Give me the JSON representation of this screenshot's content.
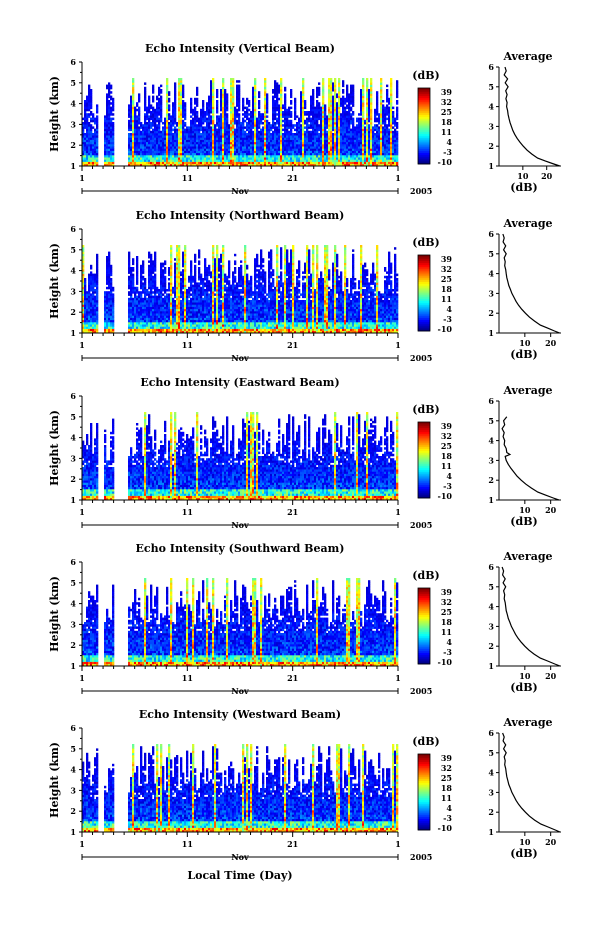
{
  "chart_data": [
    {
      "type": "heatmap",
      "title": "Echo Intensity (Vertical Beam)",
      "ylabel": "Height (km)",
      "x_tick_labels": [
        "1",
        "11",
        "21",
        "1"
      ],
      "month_label": "Nov",
      "year_label": "2005",
      "ylim": [
        1,
        6
      ],
      "y_ticks": [
        "1",
        "2",
        "3",
        "4",
        "5",
        "6"
      ],
      "colorbar_unit": "(dB)",
      "colorbar_ticks": [
        "39",
        "32",
        "25",
        "18",
        "11",
        "4",
        "-3",
        "-10"
      ],
      "clim": [
        -10,
        39
      ],
      "profile": {
        "title": "Average",
        "xlabel": "(dB)",
        "x_ticks": [
          "10",
          "20"
        ],
        "xlim": [
          0,
          26
        ],
        "ylim": [
          1,
          6
        ],
        "points": [
          [
            2.5,
            6.0
          ],
          [
            3.0,
            5.8
          ],
          [
            2.2,
            5.6
          ],
          [
            3.6,
            5.4
          ],
          [
            2.6,
            5.2
          ],
          [
            3.8,
            5.0
          ],
          [
            2.8,
            4.8
          ],
          [
            3.4,
            4.6
          ],
          [
            2.9,
            4.4
          ],
          [
            3.4,
            4.2
          ],
          [
            3.2,
            4.0
          ],
          [
            3.6,
            3.8
          ],
          [
            3.8,
            3.6
          ],
          [
            4.2,
            3.4
          ],
          [
            4.6,
            3.2
          ],
          [
            5.2,
            3.0
          ],
          [
            5.8,
            2.8
          ],
          [
            6.6,
            2.6
          ],
          [
            7.6,
            2.4
          ],
          [
            8.8,
            2.2
          ],
          [
            10.2,
            2.0
          ],
          [
            11.8,
            1.8
          ],
          [
            13.8,
            1.6
          ],
          [
            16.2,
            1.4
          ],
          [
            19.5,
            1.25
          ],
          [
            23.0,
            1.1
          ],
          [
            25.5,
            1.0
          ]
        ]
      }
    },
    {
      "type": "heatmap",
      "title": "Echo Intensity (Northward Beam)",
      "ylabel": "Height (km)",
      "x_tick_labels": [
        "1",
        "11",
        "21",
        "1"
      ],
      "month_label": "Nov",
      "year_label": "2005",
      "ylim": [
        1,
        6
      ],
      "y_ticks": [
        "1",
        "2",
        "3",
        "4",
        "5",
        "6"
      ],
      "colorbar_unit": "(dB)",
      "colorbar_ticks": [
        "39",
        "32",
        "25",
        "18",
        "11",
        "4",
        "-3",
        "-10"
      ],
      "clim": [
        -10,
        39
      ],
      "profile": {
        "title": "Average",
        "xlabel": "(dB)",
        "x_ticks": [
          "10",
          "20"
        ],
        "xlim": [
          0,
          24
        ],
        "ylim": [
          1,
          6
        ],
        "points": [
          [
            1.5,
            6.0
          ],
          [
            2.0,
            5.8
          ],
          [
            1.6,
            5.6
          ],
          [
            2.6,
            5.4
          ],
          [
            1.8,
            5.2
          ],
          [
            2.8,
            5.0
          ],
          [
            2.0,
            4.8
          ],
          [
            2.4,
            4.6
          ],
          [
            2.2,
            4.4
          ],
          [
            2.6,
            4.2
          ],
          [
            2.8,
            4.0
          ],
          [
            3.0,
            3.8
          ],
          [
            3.4,
            3.6
          ],
          [
            3.8,
            3.4
          ],
          [
            4.4,
            3.2
          ],
          [
            5.0,
            3.0
          ],
          [
            5.8,
            2.8
          ],
          [
            6.6,
            2.6
          ],
          [
            7.6,
            2.4
          ],
          [
            8.8,
            2.2
          ],
          [
            10.2,
            2.0
          ],
          [
            11.8,
            1.8
          ],
          [
            13.8,
            1.6
          ],
          [
            16.0,
            1.4
          ],
          [
            18.8,
            1.25
          ],
          [
            21.5,
            1.1
          ],
          [
            23.5,
            1.0
          ]
        ]
      }
    },
    {
      "type": "heatmap",
      "title": "Echo Intensity (Eastward Beam)",
      "ylabel": "Height (km)",
      "x_tick_labels": [
        "1",
        "11",
        "21",
        "1"
      ],
      "month_label": "Nov",
      "year_label": "2005",
      "ylim": [
        1,
        6
      ],
      "y_ticks": [
        "1",
        "2",
        "3",
        "4",
        "5",
        "6"
      ],
      "colorbar_unit": "(dB)",
      "colorbar_ticks": [
        "39",
        "32",
        "25",
        "18",
        "11",
        "4",
        "-3",
        "-10"
      ],
      "clim": [
        -10,
        39
      ],
      "profile": {
        "title": "Average",
        "xlabel": "(dB)",
        "x_ticks": [
          "10",
          "20"
        ],
        "xlim": [
          0,
          24
        ],
        "ylim": [
          1,
          6
        ],
        "points": [
          [
            3.0,
            5.2
          ],
          [
            1.8,
            5.0
          ],
          [
            2.2,
            4.8
          ],
          [
            1.2,
            4.6
          ],
          [
            2.0,
            4.4
          ],
          [
            1.6,
            4.2
          ],
          [
            2.2,
            4.0
          ],
          [
            2.0,
            3.8
          ],
          [
            2.8,
            3.6
          ],
          [
            3.0,
            3.4
          ],
          [
            4.2,
            3.3
          ],
          [
            2.4,
            3.2
          ],
          [
            2.8,
            3.0
          ],
          [
            3.6,
            2.8
          ],
          [
            4.6,
            2.6
          ],
          [
            5.8,
            2.4
          ],
          [
            7.0,
            2.2
          ],
          [
            8.6,
            2.0
          ],
          [
            10.4,
            1.8
          ],
          [
            12.6,
            1.6
          ],
          [
            15.0,
            1.4
          ],
          [
            18.0,
            1.25
          ],
          [
            21.0,
            1.1
          ],
          [
            23.2,
            1.0
          ]
        ]
      }
    },
    {
      "type": "heatmap",
      "title": "Echo Intensity (Southward Beam)",
      "ylabel": "Height (km)",
      "x_tick_labels": [
        "1",
        "11",
        "21",
        "1"
      ],
      "month_label": "Nov",
      "year_label": "2005",
      "ylim": [
        1,
        6
      ],
      "y_ticks": [
        "1",
        "2",
        "3",
        "4",
        "5",
        "6"
      ],
      "colorbar_unit": "(dB)",
      "colorbar_ticks": [
        "39",
        "32",
        "25",
        "18",
        "11",
        "4",
        "-3",
        "-10"
      ],
      "clim": [
        -10,
        39
      ],
      "profile": {
        "title": "Average",
        "xlabel": "(dB)",
        "x_ticks": [
          "10",
          "20"
        ],
        "xlim": [
          0,
          24
        ],
        "ylim": [
          1,
          6
        ],
        "points": [
          [
            1.2,
            6.0
          ],
          [
            1.8,
            5.8
          ],
          [
            1.4,
            5.6
          ],
          [
            2.4,
            5.4
          ],
          [
            1.6,
            5.2
          ],
          [
            2.6,
            5.0
          ],
          [
            1.8,
            4.8
          ],
          [
            2.2,
            4.6
          ],
          [
            2.0,
            4.4
          ],
          [
            2.4,
            4.2
          ],
          [
            2.6,
            4.0
          ],
          [
            2.8,
            3.8
          ],
          [
            3.2,
            3.6
          ],
          [
            3.6,
            3.4
          ],
          [
            4.2,
            3.2
          ],
          [
            4.8,
            3.0
          ],
          [
            5.6,
            2.8
          ],
          [
            6.4,
            2.6
          ],
          [
            7.4,
            2.4
          ],
          [
            8.6,
            2.2
          ],
          [
            10.0,
            2.0
          ],
          [
            11.6,
            1.8
          ],
          [
            13.6,
            1.6
          ],
          [
            16.0,
            1.4
          ],
          [
            18.8,
            1.25
          ],
          [
            21.6,
            1.1
          ],
          [
            23.6,
            1.0
          ]
        ]
      }
    },
    {
      "type": "heatmap",
      "title": "Echo Intensity (Westward Beam)",
      "ylabel": "Height (km)",
      "xlabel": "Local Time (Day)",
      "x_tick_labels": [
        "1",
        "11",
        "21",
        "1"
      ],
      "month_label": "Nov",
      "year_label": "2005",
      "ylim": [
        1,
        6
      ],
      "y_ticks": [
        "1",
        "2",
        "3",
        "4",
        "5",
        "6"
      ],
      "colorbar_unit": "(dB)",
      "colorbar_ticks": [
        "39",
        "32",
        "25",
        "18",
        "11",
        "4",
        "-3",
        "-10"
      ],
      "clim": [
        -10,
        39
      ],
      "profile": {
        "title": "Average",
        "xlabel": "(dB)",
        "x_ticks": [
          "10",
          "20"
        ],
        "xlim": [
          0,
          24
        ],
        "ylim": [
          1,
          6
        ],
        "points": [
          [
            1.4,
            6.0
          ],
          [
            2.0,
            5.8
          ],
          [
            1.6,
            5.6
          ],
          [
            2.6,
            5.4
          ],
          [
            1.8,
            5.2
          ],
          [
            2.8,
            5.0
          ],
          [
            2.0,
            4.8
          ],
          [
            2.4,
            4.6
          ],
          [
            2.2,
            4.4
          ],
          [
            2.6,
            4.2
          ],
          [
            2.8,
            4.0
          ],
          [
            3.0,
            3.8
          ],
          [
            3.4,
            3.6
          ],
          [
            3.8,
            3.4
          ],
          [
            4.4,
            3.2
          ],
          [
            5.0,
            3.0
          ],
          [
            5.8,
            2.8
          ],
          [
            6.6,
            2.6
          ],
          [
            7.6,
            2.4
          ],
          [
            8.8,
            2.2
          ],
          [
            10.2,
            2.0
          ],
          [
            11.8,
            1.8
          ],
          [
            13.8,
            1.6
          ],
          [
            16.2,
            1.4
          ],
          [
            19.0,
            1.25
          ],
          [
            21.8,
            1.1
          ],
          [
            23.6,
            1.0
          ]
        ]
      }
    }
  ]
}
